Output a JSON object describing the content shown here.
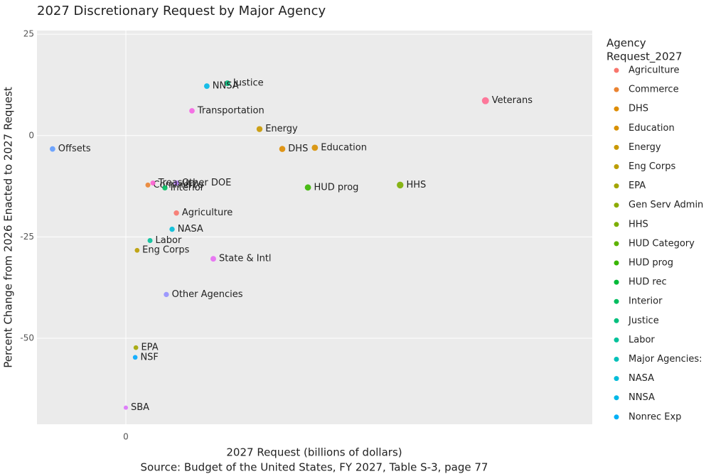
{
  "chart_data": {
    "type": "scatter",
    "title": "2027 Discretionary Request by Major Agency",
    "x_label": "2027 Request (billions of dollars)",
    "caption": "Source: Budget of the United States, FY 2027, Table S-3, page 77",
    "y_label": "Percent Change from 2026 Enacted to 2027 Request",
    "legend_title": [
      "Agency",
      "Request_2027"
    ],
    "xlim": [
      -37.1,
      194.7
    ],
    "xticks": [
      0
    ],
    "ylim": [
      -71.2,
      25.9
    ],
    "yticks": [
      25,
      0,
      -25,
      -50
    ],
    "grid": true,
    "legend": "right",
    "series": [
      {
        "name": "Agriculture",
        "color": "#F8766D",
        "x": [
          21.1
        ],
        "values": [
          -19.1
        ]
      },
      {
        "name": "Commerce",
        "color": "#EA8331",
        "x": [
          9.2
        ],
        "values": [
          -12.2
        ]
      },
      {
        "name": "DHS",
        "color": "#DE8C00",
        "x": [
          65.3
        ],
        "values": [
          -3.3
        ]
      },
      {
        "name": "Education",
        "color": "#D89000",
        "x": [
          78.9
        ],
        "values": [
          -3.0
        ]
      },
      {
        "name": "Energy",
        "color": "#C99800",
        "x": [
          55.8
        ],
        "values": [
          1.6
        ]
      },
      {
        "name": "Eng Corps",
        "color": "#BB9D00",
        "x": [
          4.7
        ],
        "values": [
          -28.3
        ]
      },
      {
        "name": "EPA",
        "color": "#A3A500",
        "x": [
          4.2
        ],
        "values": [
          -52.3
        ]
      },
      {
        "name": "Gen Serv Admin",
        "color": "#8CAB00",
        "x": [],
        "values": []
      },
      {
        "name": "HHS",
        "color": "#7CAE00",
        "x": [
          114.5
        ],
        "values": [
          -12.2
        ]
      },
      {
        "name": "HUD Category",
        "color": "#5EB300",
        "x": [],
        "values": []
      },
      {
        "name": "HUD prog",
        "color": "#39B600",
        "x": [
          76.0
        ],
        "values": [
          -12.8
        ]
      },
      {
        "name": "HUD rec",
        "color": "#00BA38",
        "x": [],
        "values": []
      },
      {
        "name": "Interior",
        "color": "#00BD5F",
        "x": [
          16.3
        ],
        "values": [
          -12.9
        ]
      },
      {
        "name": "Justice",
        "color": "#00BF7D",
        "x": [
          42.4
        ],
        "values": [
          12.9
        ]
      },
      {
        "name": "Labor",
        "color": "#00C19A",
        "x": [
          10.1
        ],
        "values": [
          -25.9
        ]
      },
      {
        "name": "Major Agencies:",
        "color": "#00C0B8",
        "x": [],
        "values": []
      },
      {
        "name": "NASA",
        "color": "#00BCD8",
        "x": [
          19.3
        ],
        "values": [
          -23.1
        ]
      },
      {
        "name": "NNSA",
        "color": "#00B8E7",
        "x": [
          33.8
        ],
        "values": [
          12.2
        ]
      },
      {
        "name": "Nonrec Exp",
        "color": "#00B0F6",
        "x": [],
        "values": []
      },
      {
        "name": "NSF",
        "color": "#00A9FF",
        "x": [
          3.9
        ],
        "values": [
          -54.7
        ]
      },
      {
        "name": "Offsets",
        "color": "#619CFF",
        "x": [
          -30.6
        ],
        "values": [
          -3.3
        ]
      },
      {
        "name": "Other Agencies",
        "color": "#9590FF",
        "x": [
          16.9
        ],
        "values": [
          -39.2
        ]
      },
      {
        "name": "Other DOE",
        "color": "#B983FF",
        "x": [
          21.1
        ],
        "values": [
          -11.7
        ]
      },
      {
        "name": "SBA",
        "color": "#DB72FB",
        "x": [
          0.0
        ],
        "values": [
          -67.1
        ]
      },
      {
        "name": "State & Intl",
        "color": "#E76BF3",
        "x": [
          36.5
        ],
        "values": [
          -30.4
        ]
      },
      {
        "name": "Transportation",
        "color": "#F564E3",
        "x": [
          27.6
        ],
        "values": [
          6.1
        ]
      },
      {
        "name": "Treasury",
        "color": "#FD61D1",
        "x": [
          11.3
        ],
        "values": [
          -11.7
        ]
      },
      {
        "name": "Veterans",
        "color": "#FF6C91",
        "x": [
          150.1
        ],
        "values": [
          8.6
        ]
      }
    ]
  }
}
